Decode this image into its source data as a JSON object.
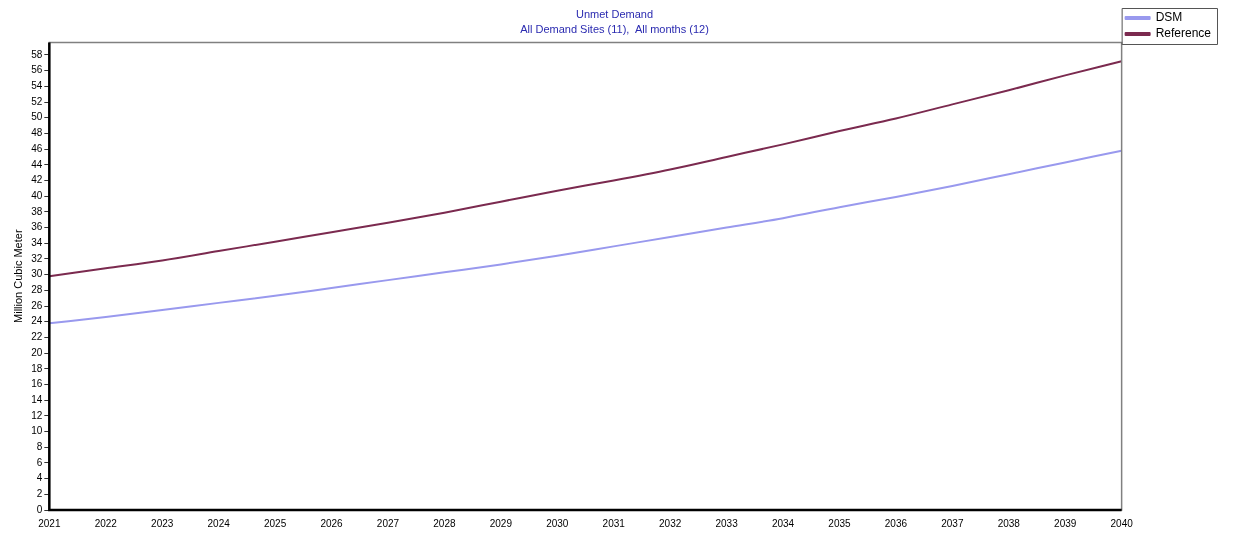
{
  "chart_data": {
    "type": "line",
    "title": "Unmet Demand",
    "subtitle": "All Demand Sites (11),  All months (12)",
    "ylabel": "Million Cubic Meter",
    "x": [
      2021,
      2022,
      2023,
      2024,
      2025,
      2026,
      2027,
      2028,
      2029,
      2030,
      2031,
      2032,
      2033,
      2034,
      2035,
      2036,
      2037,
      2038,
      2039,
      2040
    ],
    "xlim": [
      2021,
      2040
    ],
    "xticks": [
      2021,
      2022,
      2023,
      2024,
      2025,
      2026,
      2027,
      2028,
      2029,
      2030,
      2031,
      2032,
      2033,
      2034,
      2035,
      2036,
      2037,
      2038,
      2039,
      2040
    ],
    "ylim": [
      0,
      59.6
    ],
    "yticks": [
      0,
      2,
      4,
      6,
      8,
      10,
      12,
      14,
      16,
      18,
      20,
      22,
      24,
      26,
      28,
      30,
      32,
      34,
      36,
      38,
      40,
      42,
      44,
      46,
      48,
      50,
      52,
      54,
      56,
      58
    ],
    "series": [
      {
        "name": "DSM",
        "color": "#9999ee",
        "values": [
          23.8,
          24.6,
          25.5,
          26.4,
          27.3,
          28.3,
          29.3,
          30.3,
          31.3,
          32.4,
          33.6,
          34.8,
          36.0,
          37.2,
          38.6,
          39.9,
          41.3,
          42.8,
          44.3,
          45.8
        ]
      },
      {
        "name": "Reference",
        "color": "#7b2a4f",
        "values": [
          29.8,
          30.8,
          31.8,
          33.0,
          34.2,
          35.4,
          36.6,
          37.9,
          39.3,
          40.7,
          42.0,
          43.4,
          45.0,
          46.6,
          48.3,
          49.9,
          51.7,
          53.5,
          55.4,
          57.2
        ]
      }
    ],
    "grid": false,
    "legend": "top right",
    "marker": "none",
    "line_style": "solid"
  }
}
